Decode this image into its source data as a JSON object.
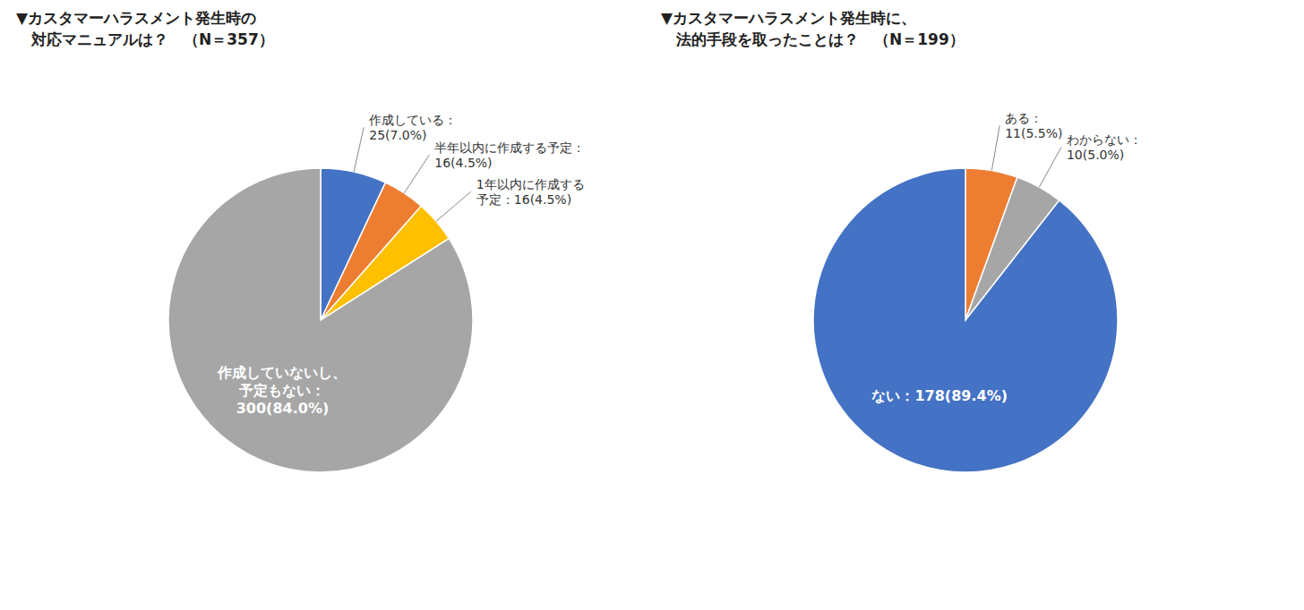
{
  "chart_data": [
    {
      "type": "pie",
      "title": "▼カスタマーハラスメント発生時の\n　対応マニュアルは？　（N＝357）",
      "categories": [
        "作成している：\n25(7.0%)",
        "半年以内に作成する予定：\n16(4.5%)",
        "1年以内に作成する\n予定：16(4.5%)",
        "作成していないし、\n予定もない：\n300(84.0%)"
      ],
      "values": [
        25,
        16,
        16,
        300
      ],
      "colors": [
        "#4472C4",
        "#ED7D31",
        "#FFC000",
        "#A6A6A6"
      ]
    },
    {
      "type": "pie",
      "title": "▼カスタマーハラスメント発生時に、\n　法的手段を取ったことは？　（N＝199）",
      "categories": [
        "ある：\n11(5.5%)",
        "わからない：\n10(5.0%)",
        "ない：178(89.4%)"
      ],
      "values": [
        11,
        10,
        178
      ],
      "colors": [
        "#ED7D31",
        "#A6A6A6",
        "#4472C4"
      ]
    }
  ]
}
